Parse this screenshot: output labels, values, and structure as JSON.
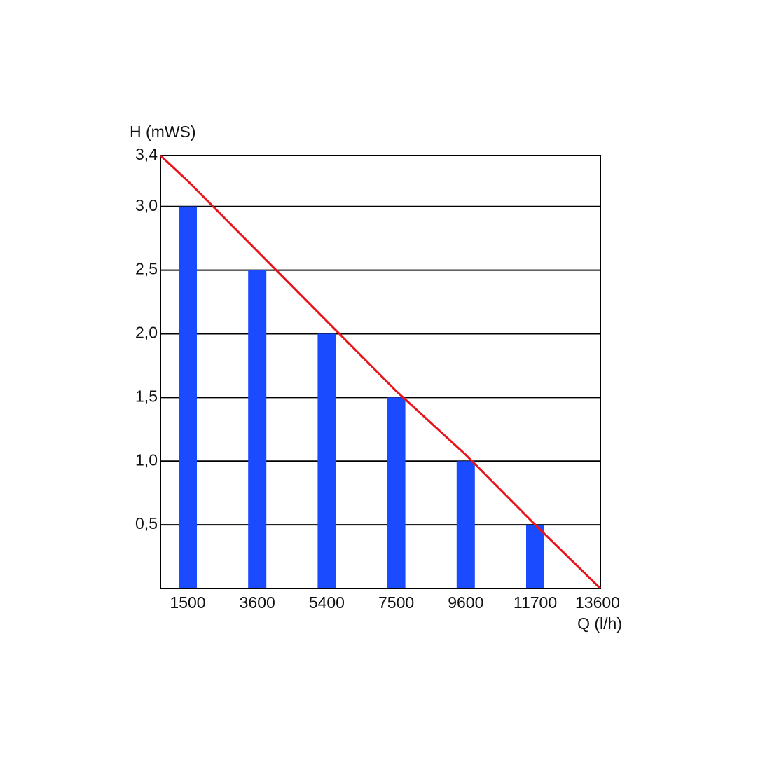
{
  "chart_data": {
    "type": "bar",
    "y_label": "H (mWS)",
    "x_label": "Q (l/h)",
    "categories": [
      null,
      "1500",
      "3600",
      "5400",
      "7500",
      "9600",
      "11700",
      "13600"
    ],
    "values": [
      null,
      3.0,
      2.5,
      2.0,
      1.5,
      1.0,
      0.5,
      null
    ],
    "color": "#1a4bff",
    "line": {
      "color": "#e8141c",
      "values": [
        3.4,
        3.2,
        2.65,
        2.1,
        1.55,
        1.05,
        0.5,
        0
      ]
    },
    "ylim": [
      0,
      3.4
    ],
    "yticks": [
      {
        "value": 0.5,
        "label": "0,5"
      },
      {
        "value": 1.0,
        "label": "1,0"
      },
      {
        "value": 1.5,
        "label": "1,5"
      },
      {
        "value": 2.0,
        "label": "2,0"
      },
      {
        "value": 2.5,
        "label": "2,5"
      },
      {
        "value": 3.0,
        "label": "3,0"
      },
      {
        "value": 3.4,
        "label": "3,4"
      }
    ],
    "grid": true
  }
}
